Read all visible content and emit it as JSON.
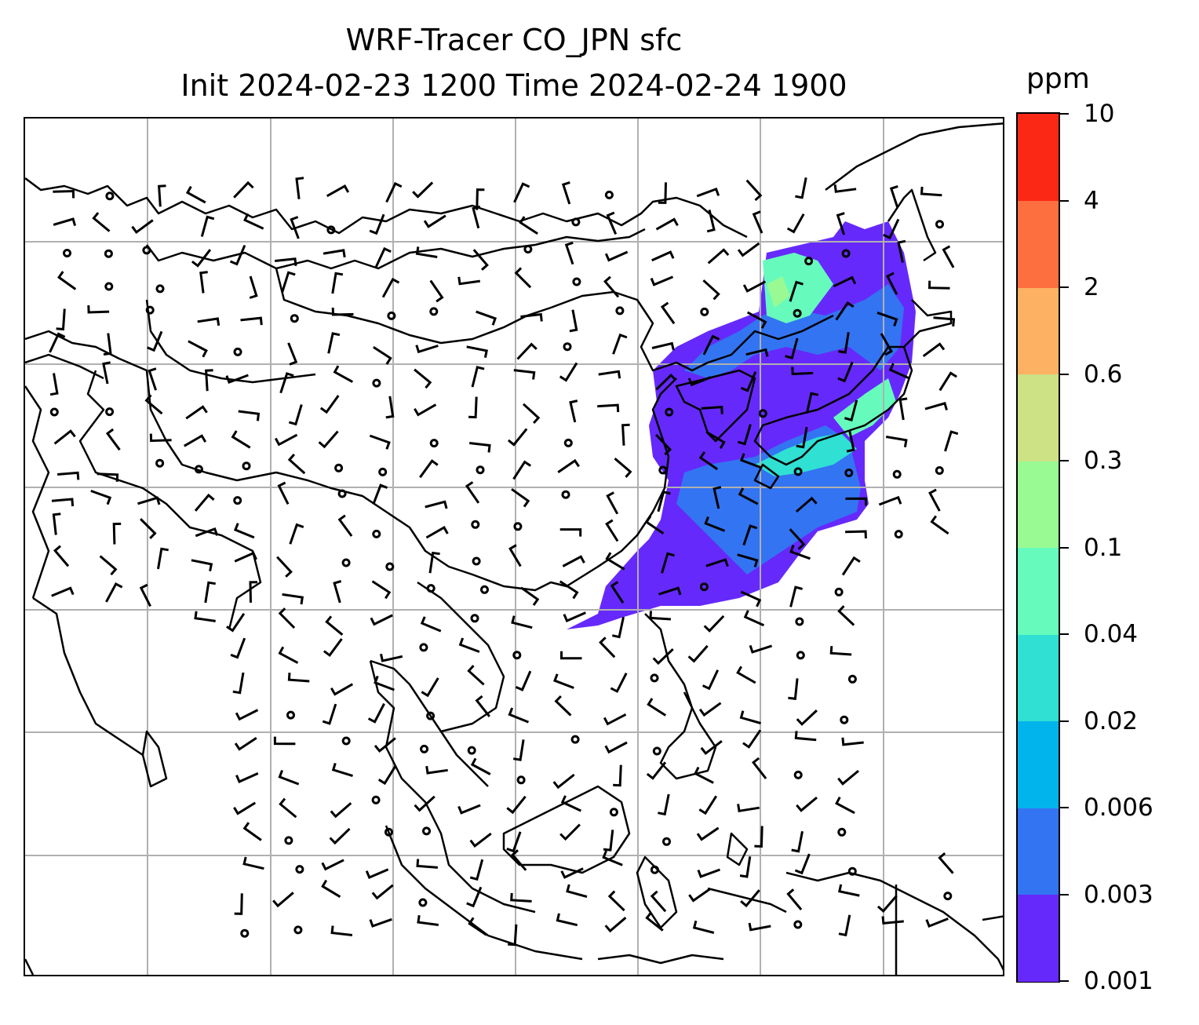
{
  "map": {
    "title_line1": "WRF-Tracer CO_JPN sfc",
    "title_line2": "Init 2024-02-23 1200 Time 2024-02-24 1900",
    "gridlines": "on",
    "gridline_color": "#b0b0b0",
    "coastline_color": "#000000",
    "layers": [
      "CO tracer concentration (filled contours)",
      "surface wind barbs",
      "coastlines and borders"
    ]
  },
  "colorbar": {
    "unit": "ppm",
    "levels": [
      "0.001",
      "0.003",
      "0.006",
      "0.02",
      "0.04",
      "0.1",
      "0.3",
      "0.6",
      "2",
      "4",
      "10"
    ],
    "colors": [
      "#6629fb",
      "#3374f2",
      "#01b4ec",
      "#2fe0d3",
      "#66fbbd",
      "#99f993",
      "#cde185",
      "#fdb163",
      "#fd6f3f",
      "#fb2816"
    ]
  }
}
